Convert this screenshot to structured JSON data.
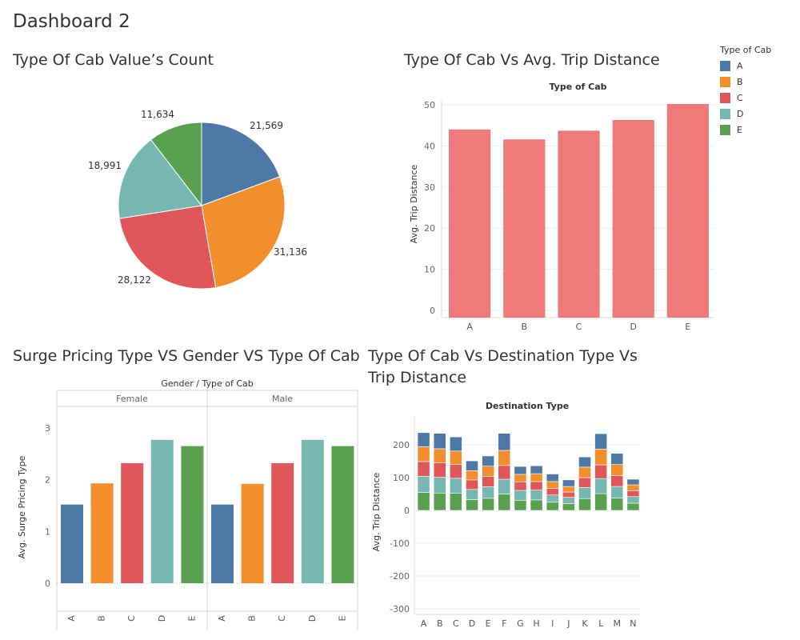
{
  "dashboard_title": "Dashboard 2",
  "colors": {
    "A": "#4e79a7",
    "B": "#f28e2b",
    "C": "#e15759",
    "D": "#76b7b2",
    "E": "#59a14f",
    "bar": "#f07a79"
  },
  "legend": {
    "title": "Type of Cab",
    "items": [
      {
        "label": "A",
        "color": "#4e79a7"
      },
      {
        "label": "B",
        "color": "#f28e2b"
      },
      {
        "label": "C",
        "color": "#e15759"
      },
      {
        "label": "D",
        "color": "#76b7b2"
      },
      {
        "label": "E",
        "color": "#59a14f"
      }
    ]
  },
  "chart_data": [
    {
      "type": "pie",
      "title": "Type Of Cab Value’s Count",
      "slices": [
        {
          "label": "A",
          "value": 21569
        },
        {
          "label": "B",
          "value": 31136
        },
        {
          "label": "C",
          "value": 28122
        },
        {
          "label": "D",
          "value": 18991
        },
        {
          "label": "E",
          "value": 11634
        }
      ],
      "data_labels": [
        "21,569",
        "31,136",
        "28,122",
        "18,991",
        "11,634"
      ]
    },
    {
      "type": "bar",
      "title": "Type Of Cab Vs Avg. Trip Distance",
      "header": "Type of Cab",
      "categories": [
        "A",
        "B",
        "C",
        "D",
        "E"
      ],
      "values": [
        44,
        41.6,
        43.7,
        46.3,
        50.2
      ],
      "ylabel": "Avg. Trip Distance",
      "ylim": [
        0,
        50
      ],
      "yticks": [
        0,
        10,
        20,
        30,
        40,
        50
      ]
    },
    {
      "type": "bar",
      "title": "Surge Pricing Type VS Gender VS Type Of Cab",
      "header": "Gender / Type of Cab",
      "panels": [
        {
          "name": "Female",
          "categories": [
            "A",
            "B",
            "C",
            "D",
            "E"
          ],
          "values": [
            1.52,
            1.93,
            2.32,
            2.77,
            2.65
          ]
        },
        {
          "name": "Male",
          "categories": [
            "A",
            "B",
            "C",
            "D",
            "E"
          ],
          "values": [
            1.52,
            1.92,
            2.32,
            2.77,
            2.65
          ]
        }
      ],
      "ylabel": "Avg. Surge Pricing Type",
      "ylim": [
        0,
        3
      ],
      "yticks": [
        0,
        1,
        2,
        3
      ]
    },
    {
      "type": "bar",
      "stacked": true,
      "title": "Type Of Cab Vs Destination Type Vs Trip Distance",
      "header": "Destination Type",
      "categories": [
        "A",
        "B",
        "C",
        "D",
        "E",
        "F",
        "G",
        "H",
        "I",
        "J",
        "K",
        "L",
        "M",
        "N"
      ],
      "series": [
        {
          "name": "E",
          "values": [
            55,
            53,
            52,
            33,
            37,
            50,
            31,
            32,
            25,
            21,
            36,
            51,
            38,
            22
          ]
        },
        {
          "name": "D",
          "values": [
            49,
            48,
            46,
            31,
            35,
            45,
            30,
            30,
            22,
            19,
            34,
            46,
            35,
            20
          ]
        },
        {
          "name": "C",
          "values": [
            45,
            44,
            42,
            29,
            32,
            42,
            26,
            26,
            20,
            16,
            30,
            42,
            33,
            18
          ]
        },
        {
          "name": "B",
          "values": [
            45,
            43,
            41,
            28,
            31,
            46,
            23,
            24,
            21,
            17,
            32,
            48,
            34,
            18
          ]
        },
        {
          "name": "A",
          "values": [
            43,
            47,
            43,
            30,
            31,
            52,
            24,
            24,
            23,
            20,
            31,
            47,
            34,
            17
          ]
        }
      ],
      "ylabel": "Avg. Trip Distance",
      "ylim": [
        -320,
        260
      ],
      "yticks": [
        -300,
        -200,
        -100,
        0,
        100,
        200
      ]
    }
  ]
}
